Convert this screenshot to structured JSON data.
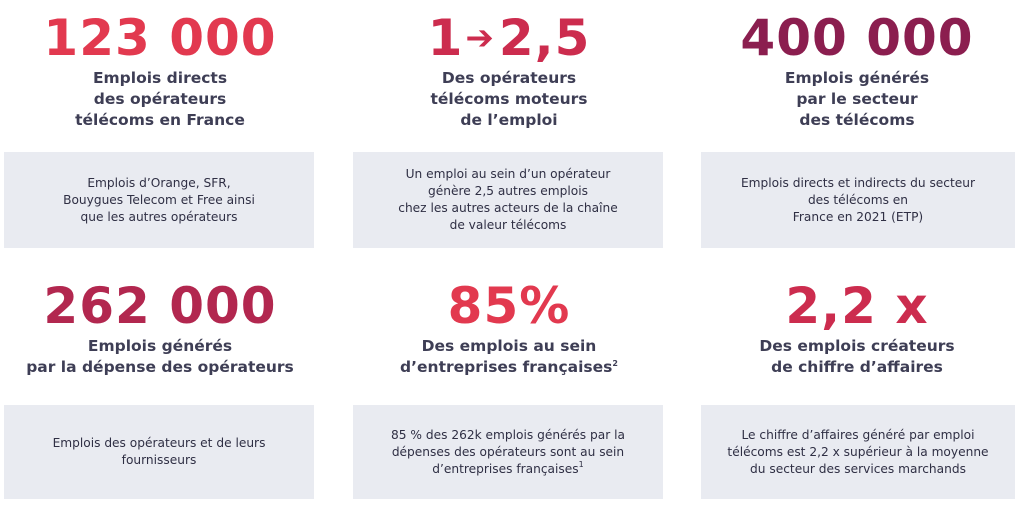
{
  "colors": {
    "red": "#e2394f",
    "crimson": "#cc2c4e",
    "wine": "#8b1e4f",
    "box_bg": "#e9ebf1",
    "text_dark": "#3e3e55"
  },
  "cards": [
    {
      "big": "123 000",
      "label_lines": [
        "Emplois directs",
        "des opérateurs",
        "télécoms en France"
      ],
      "box_lines": [
        "Emplois d’Orange, SFR,",
        "Bouygues Telecom et Free ainsi",
        "que les autres opérateurs"
      ]
    },
    {
      "big_left": "1",
      "big_arrow": "➔",
      "big_right": "2,5",
      "label_lines": [
        "Des opérateurs",
        "télécoms moteurs",
        "de l’emploi"
      ],
      "box_lines": [
        "Un emploi au sein d’un opérateur",
        "génère 2,5 autres emplois",
        "chez les autres acteurs de la chaîne",
        "de valeur télécoms"
      ]
    },
    {
      "big": "400 000",
      "label_lines": [
        "Emplois générés",
        "par le secteur",
        "des télécoms"
      ],
      "box_lines": [
        "Emplois directs et indirects du secteur",
        "des télécoms en",
        "France en 2021 (ETP)"
      ]
    },
    {
      "big": "262 000",
      "label_lines": [
        "Emplois générés",
        "par la dépense des opérateurs"
      ],
      "box_lines": [
        "Emplois des opérateurs et de leurs",
        "fournisseurs"
      ]
    },
    {
      "big": "85%",
      "label_lines": [
        "Des emplois au sein",
        "d’entreprises françaises"
      ],
      "label_sup": "2",
      "box_lines": [
        "85 % des 262k emplois générés par la",
        "dépenses des opérateurs sont au sein",
        "d’entreprises françaises"
      ],
      "box_sup": "1"
    },
    {
      "big": "2,2 x",
      "label_lines": [
        "Des emplois créateurs",
        "de chiffre d’affaires"
      ],
      "box_lines": [
        "Le chiffre d’affaires généré par emploi",
        "télécoms est 2,2 x supérieur à la moyenne",
        "du secteur des services marchands"
      ]
    }
  ]
}
